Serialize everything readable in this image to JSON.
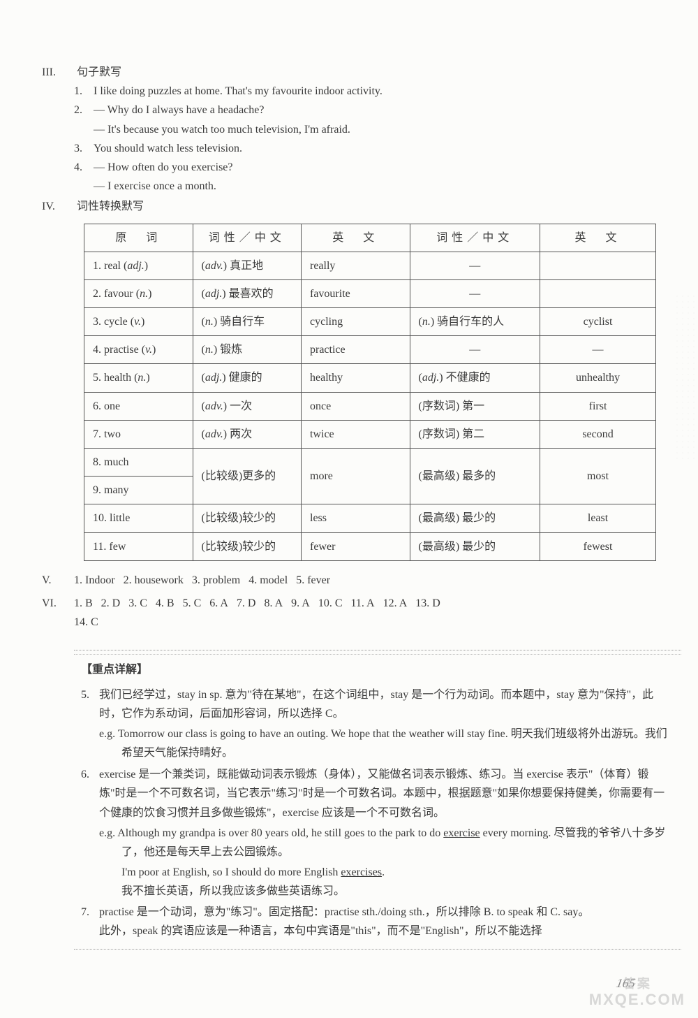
{
  "sectionIII": {
    "label": "III.",
    "title": "句子默写",
    "items": [
      {
        "n": "1.",
        "text": "I like doing puzzles at home. That's my favourite indoor activity."
      },
      {
        "n": "2.",
        "text": "— Why do I always have a headache?"
      },
      {
        "n": "",
        "text": "— It's because you watch too much television, I'm afraid."
      },
      {
        "n": "3.",
        "text": "You should watch less television."
      },
      {
        "n": "4.",
        "text": "— How often do you exercise?"
      },
      {
        "n": "",
        "text": "— I exercise once a month."
      }
    ]
  },
  "sectionIV": {
    "label": "IV.",
    "title": "词性转换默写",
    "table": {
      "headers": [
        "原　词",
        "词性／中文",
        "英　文",
        "词性／中文",
        "英　文"
      ],
      "rows": [
        {
          "c1": "1. real (adj.)",
          "c2": "(adv.) 真正地",
          "c3": "really",
          "c4": "—",
          "c5": ""
        },
        {
          "c1": "2. favour (n.)",
          "c2": "(adj.) 最喜欢的",
          "c3": "favourite",
          "c4": "—",
          "c5": ""
        },
        {
          "c1": "3. cycle (v.)",
          "c2": "(n.) 骑自行车",
          "c3": "cycling",
          "c4": "(n.) 骑自行车的人",
          "c5": "cyclist"
        },
        {
          "c1": "4. practise (v.)",
          "c2": "(n.) 锻炼",
          "c3": "practice",
          "c4": "—",
          "c5": "—"
        },
        {
          "c1": "5. health (n.)",
          "c2": "(adj.) 健康的",
          "c3": "healthy",
          "c4": "(adj.) 不健康的",
          "c5": "unhealthy"
        },
        {
          "c1": "6. one",
          "c2": "(adv.) 一次",
          "c3": "once",
          "c4": "(序数词) 第一",
          "c5": "first"
        },
        {
          "c1": "7. two",
          "c2": "(adv.) 两次",
          "c3": "twice",
          "c4": "(序数词) 第二",
          "c5": "second"
        },
        {
          "c1": "8. much",
          "c2": "(比较级)更多的",
          "c3": "more",
          "c4": "(最高级) 最多的",
          "c5": "most",
          "rowspan": true
        },
        {
          "c1": "9. many"
        },
        {
          "c1": "10. little",
          "c2": "(比较级)较少的",
          "c3": "less",
          "c4": "(最高级) 最少的",
          "c5": "least"
        },
        {
          "c1": "11. few",
          "c2": "(比较级)较少的",
          "c3": "fewer",
          "c4": "(最高级) 最少的",
          "c5": "fewest"
        }
      ]
    }
  },
  "sectionV": {
    "label": "V.",
    "items": [
      "1. Indoor",
      "2. housework",
      "3. problem",
      "4. model",
      "5. fever"
    ]
  },
  "sectionVI": {
    "label": "VI.",
    "line1": [
      "1. B",
      "2. D",
      "3. C",
      "4. B",
      "5. C",
      "6. A",
      "7. D",
      "8. A",
      "9. A",
      "10. C",
      "11. A",
      "12. A",
      "13. D"
    ],
    "line2": [
      "14. C"
    ]
  },
  "detail": {
    "title": "【重点详解】",
    "items": [
      {
        "n": "5.",
        "body": "我们已经学过，stay in sp. 意为\"待在某地\"，在这个词组中，stay 是一个行为动词。而本题中，stay 意为\"保持\"，此时，它作为系动词，后面加形容词，所以选择 C。",
        "eg": [
          "e.g. Tomorrow our class is going to have an outing. We hope that the weather will stay fine. 明天我们班级将外出游玩。我们希望天气能保持晴好。"
        ]
      },
      {
        "n": "6.",
        "body": "exercise 是一个兼类词，既能做动词表示锻炼（身体），又能做名词表示锻炼、练习。当 exercise 表示\"（体育）锻炼\"时是一个不可数名词，当它表示\"练习\"时是一个可数名词。本题中，根据题意\"如果你想要保持健美，你需要有一个健康的饮食习惯并且多做些锻炼\"，exercise 应该是一个不可数名词。",
        "eg": [
          "e.g. Although my grandpa is over 80 years old, he still goes to the park to do <u>exercise</u> every morning. 尽管我的爷爷八十多岁了，他还是每天早上去公园锻炼。",
          "I'm poor at English, so I should do more English <u>exercises</u>.",
          "我不擅长英语，所以我应该多做些英语练习。"
        ]
      },
      {
        "n": "7.",
        "body": "practise 是一个动词，意为\"练习\"。固定搭配：practise sth./doing sth.，所以排除 B. to speak 和 C. say。",
        "extra": "此外，speak 的宾语应该是一种语言，本句中宾语是\"this\"，而不是\"English\"，所以不能选择"
      }
    ]
  },
  "pagenum": "165",
  "watermark": {
    "top": "答案",
    "bottom": "MXQE.COM"
  }
}
